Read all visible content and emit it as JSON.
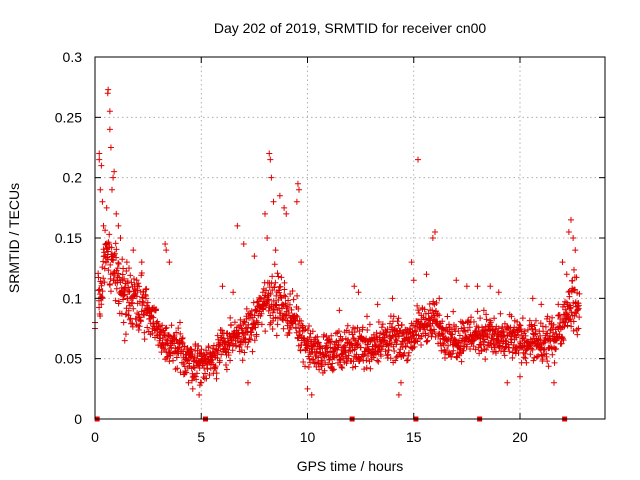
{
  "chart_data": {
    "type": "scatter",
    "title": "Day 202 of 2019, SRMTID for receiver cn00",
    "xlabel": "GPS time / hours",
    "ylabel": "SRMTID / TECUs",
    "xlim": [
      0,
      24
    ],
    "ylim": [
      0,
      0.3
    ],
    "xticks": [
      0,
      5,
      10,
      15,
      20
    ],
    "xtick_labels": [
      "0",
      "5",
      "10",
      "15",
      "20"
    ],
    "yticks": [
      0,
      0.05,
      0.1,
      0.15,
      0.2,
      0.25,
      0.3
    ],
    "ytick_labels": [
      "0",
      "0.05",
      "0.1",
      "0.15",
      "0.2",
      "0.25",
      "0.3"
    ],
    "grid": true,
    "marker": "+",
    "color": "#e00000",
    "gap_markers_x": [
      0.1,
      5.2,
      12.1,
      15.1,
      18.1,
      22.1
    ],
    "series": [
      {
        "name": "SRMTID",
        "trend": [
          [
            0.0,
            0.08
          ],
          [
            0.5,
            0.14
          ],
          [
            1.0,
            0.12
          ],
          [
            1.5,
            0.1
          ],
          [
            2.0,
            0.1
          ],
          [
            2.5,
            0.09
          ],
          [
            3.0,
            0.07
          ],
          [
            3.5,
            0.06
          ],
          [
            4.0,
            0.055
          ],
          [
            4.5,
            0.05
          ],
          [
            5.0,
            0.045
          ],
          [
            5.5,
            0.05
          ],
          [
            6.0,
            0.06
          ],
          [
            6.5,
            0.065
          ],
          [
            7.0,
            0.07
          ],
          [
            7.5,
            0.08
          ],
          [
            8.0,
            0.1
          ],
          [
            8.5,
            0.1
          ],
          [
            9.0,
            0.09
          ],
          [
            9.5,
            0.08
          ],
          [
            10.0,
            0.06
          ],
          [
            10.5,
            0.055
          ],
          [
            11.0,
            0.055
          ],
          [
            11.5,
            0.055
          ],
          [
            12.0,
            0.06
          ],
          [
            12.5,
            0.06
          ],
          [
            13.0,
            0.06
          ],
          [
            13.5,
            0.065
          ],
          [
            14.0,
            0.065
          ],
          [
            14.5,
            0.065
          ],
          [
            15.0,
            0.07
          ],
          [
            15.5,
            0.08
          ],
          [
            16.0,
            0.08
          ],
          [
            16.5,
            0.07
          ],
          [
            17.0,
            0.065
          ],
          [
            17.5,
            0.07
          ],
          [
            18.0,
            0.07
          ],
          [
            18.5,
            0.07
          ],
          [
            19.0,
            0.065
          ],
          [
            19.5,
            0.065
          ],
          [
            20.0,
            0.065
          ],
          [
            20.5,
            0.065
          ],
          [
            21.0,
            0.06
          ],
          [
            21.5,
            0.065
          ],
          [
            22.0,
            0.08
          ],
          [
            22.5,
            0.1
          ],
          [
            22.8,
            0.09
          ]
        ],
        "spread": 0.025,
        "points": [
          [
            0.0,
            0.08
          ],
          [
            0.0,
            0.075
          ],
          [
            0.2,
            0.22
          ],
          [
            0.2,
            0.215
          ],
          [
            0.3,
            0.21
          ],
          [
            0.25,
            0.19
          ],
          [
            0.35,
            0.18
          ],
          [
            0.4,
            0.16
          ],
          [
            0.5,
            0.145
          ],
          [
            0.55,
            0.175
          ],
          [
            0.6,
            0.27
          ],
          [
            0.62,
            0.273
          ],
          [
            0.7,
            0.255
          ],
          [
            0.7,
            0.24
          ],
          [
            0.75,
            0.225
          ],
          [
            0.8,
            0.19
          ],
          [
            0.85,
            0.2
          ],
          [
            0.9,
            0.205
          ],
          [
            1.0,
            0.17
          ],
          [
            1.1,
            0.16
          ],
          [
            1.2,
            0.15
          ],
          [
            1.3,
            0.115
          ],
          [
            1.35,
            0.08
          ],
          [
            1.4,
            0.065
          ],
          [
            1.5,
            0.13
          ],
          [
            1.6,
            0.125
          ],
          [
            1.8,
            0.14
          ],
          [
            2.0,
            0.11
          ],
          [
            2.2,
            0.13
          ],
          [
            2.4,
            0.1
          ],
          [
            3.3,
            0.145
          ],
          [
            3.35,
            0.14
          ],
          [
            3.5,
            0.13
          ],
          [
            4.0,
            0.08
          ],
          [
            4.4,
            0.03
          ],
          [
            4.6,
            0.025
          ],
          [
            4.9,
            0.02
          ],
          [
            5.0,
            0.03
          ],
          [
            6.0,
            0.11
          ],
          [
            6.5,
            0.105
          ],
          [
            6.7,
            0.16
          ],
          [
            7.0,
            0.145
          ],
          [
            7.5,
            0.135
          ],
          [
            7.2,
            0.03
          ],
          [
            7.6,
            0.07
          ],
          [
            8.0,
            0.17
          ],
          [
            8.1,
            0.15
          ],
          [
            8.2,
            0.22
          ],
          [
            8.25,
            0.215
          ],
          [
            8.3,
            0.2
          ],
          [
            8.4,
            0.18
          ],
          [
            8.5,
            0.14
          ],
          [
            8.7,
            0.185
          ],
          [
            8.9,
            0.175
          ],
          [
            9.0,
            0.17
          ],
          [
            9.5,
            0.18
          ],
          [
            9.55,
            0.195
          ],
          [
            9.6,
            0.19
          ],
          [
            9.7,
            0.13
          ],
          [
            10.0,
            0.025
          ],
          [
            10.2,
            0.02
          ],
          [
            11.5,
            0.09
          ],
          [
            12.2,
            0.11
          ],
          [
            12.4,
            0.105
          ],
          [
            12.8,
            0.085
          ],
          [
            13.3,
            0.095
          ],
          [
            14.0,
            0.1
          ],
          [
            14.3,
            0.02
          ],
          [
            14.4,
            0.03
          ],
          [
            15.2,
            0.215
          ],
          [
            15.0,
            0.115
          ],
          [
            14.9,
            0.13
          ],
          [
            15.6,
            0.12
          ],
          [
            15.9,
            0.15
          ],
          [
            16.0,
            0.155
          ],
          [
            16.2,
            0.1
          ],
          [
            17.0,
            0.115
          ],
          [
            17.5,
            0.11
          ],
          [
            18.0,
            0.11
          ],
          [
            18.3,
            0.09
          ],
          [
            18.6,
            0.11
          ],
          [
            19.0,
            0.105
          ],
          [
            19.4,
            0.03
          ],
          [
            19.6,
            0.085
          ],
          [
            20.0,
            0.035
          ],
          [
            20.6,
            0.1
          ],
          [
            21.0,
            0.095
          ],
          [
            21.3,
            0.085
          ],
          [
            21.6,
            0.03
          ],
          [
            21.8,
            0.095
          ],
          [
            22.0,
            0.13
          ],
          [
            22.2,
            0.12
          ],
          [
            22.3,
            0.155
          ],
          [
            22.4,
            0.165
          ],
          [
            22.5,
            0.15
          ],
          [
            22.6,
            0.14
          ],
          [
            22.7,
            0.09
          ],
          [
            22.75,
            0.075
          ]
        ]
      }
    ]
  }
}
